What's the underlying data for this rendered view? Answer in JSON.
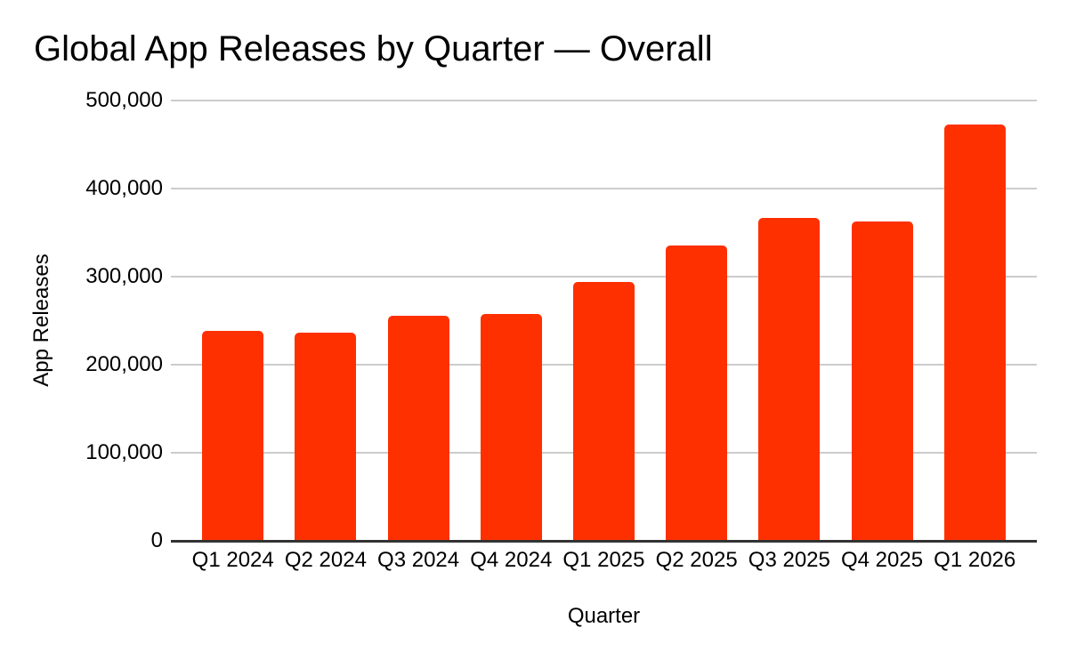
{
  "chart_data": {
    "type": "bar",
    "title": "Global App Releases by Quarter — Overall",
    "xlabel": "Quarter",
    "ylabel": "App Releases",
    "categories": [
      "Q1 2024",
      "Q2 2024",
      "Q3 2024",
      "Q4 2024",
      "Q1 2025",
      "Q2 2025",
      "Q3 2025",
      "Q4 2025",
      "Q1 2026"
    ],
    "values": [
      238000,
      236000,
      256000,
      258000,
      294000,
      335000,
      367000,
      363000,
      473000
    ],
    "ylim": [
      0,
      500000
    ],
    "yticks": [
      0,
      100000,
      200000,
      300000,
      400000,
      500000
    ],
    "ytick_labels": [
      "0",
      "100,000",
      "200,000",
      "300,000",
      "400,000",
      "500,000"
    ],
    "grid": true,
    "legend_position": "none",
    "colors": {
      "bar": "#FF3000",
      "gridline": "#CCCCCC",
      "axis_line": "#333333",
      "text": "#000000",
      "background": "#FFFFFF"
    }
  }
}
